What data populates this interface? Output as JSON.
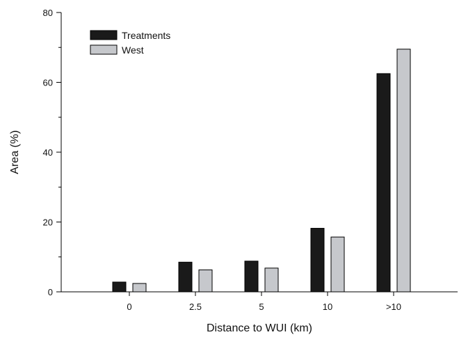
{
  "chart_data": {
    "type": "bar",
    "categories": [
      "0",
      "2.5",
      "5",
      "10",
      ">10"
    ],
    "series": [
      {
        "name": "Treatments",
        "values": [
          2.8,
          8.5,
          8.8,
          18.2,
          62.5
        ],
        "color": "#1a1a1a"
      },
      {
        "name": "West",
        "values": [
          2.4,
          6.3,
          6.8,
          15.7,
          69.5
        ],
        "color": "#c6c8cc"
      }
    ],
    "xlabel": "Distance to WUI (km)",
    "ylabel": "Area (%)",
    "ylim": [
      0,
      80
    ],
    "yticks": [
      "0",
      "20",
      "40",
      "60",
      "80"
    ],
    "grid": false,
    "legend_position": "top-left"
  }
}
